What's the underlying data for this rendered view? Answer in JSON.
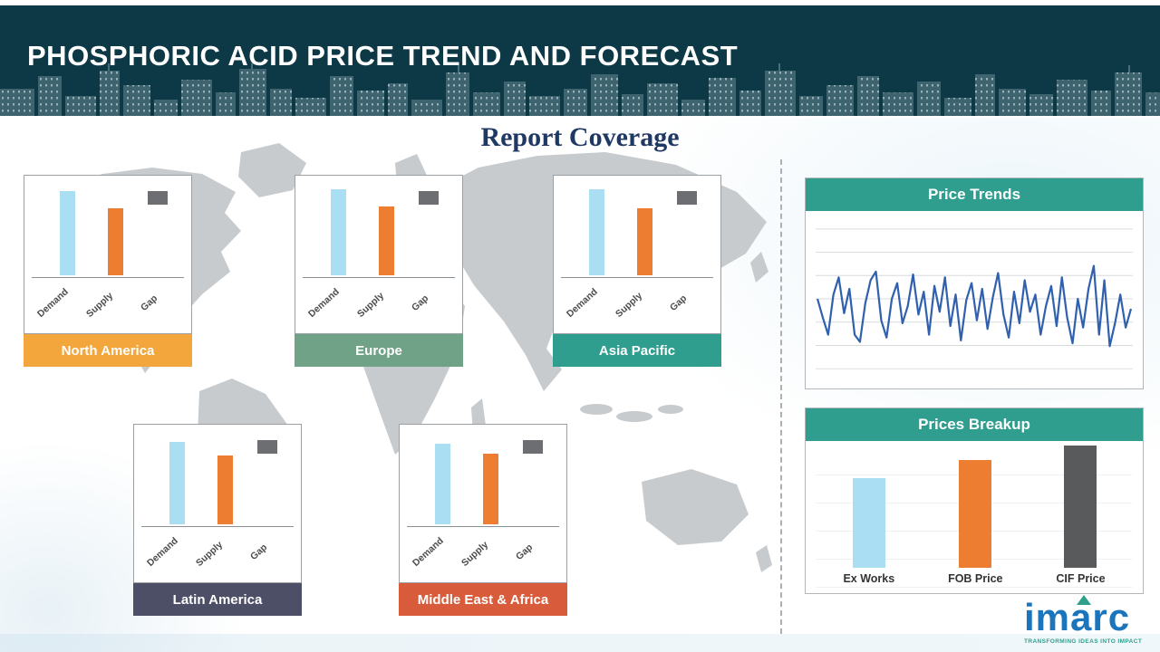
{
  "header": {
    "title": "PHOSPHORIC ACID PRICE TREND AND FORECAST"
  },
  "main": {
    "section_title": "Report Coverage"
  },
  "logo": {
    "text": "imarc",
    "tagline": "TRANSFORMING IDEAS INTO IMPACT"
  },
  "colors": {
    "header_bg": "#0d3845",
    "section_title_navy": "#1f3864",
    "teal_header": "#2f9e8e",
    "demand_blue": "#aadef2",
    "supply_orange": "#ed7d31",
    "gap_gray": "#6d6e71",
    "trend_line_blue": "#3060ae"
  },
  "chart_data": [
    {
      "id": "north-america-demand-supply-gap",
      "type": "bar",
      "title": "North America",
      "band_color": "#f2a63b",
      "categories": [
        "Demand",
        "Supply",
        "Gap"
      ],
      "values": [
        98,
        78,
        16
      ],
      "colors": [
        "#aadef2",
        "#ed7d31",
        "#6d6e71"
      ]
    },
    {
      "id": "europe-demand-supply-gap",
      "type": "bar",
      "title": "Europe",
      "band_color": "#6fa287",
      "categories": [
        "Demand",
        "Supply",
        "Gap"
      ],
      "values": [
        100,
        80,
        16
      ],
      "colors": [
        "#aadef2",
        "#ed7d31",
        "#6d6e71"
      ]
    },
    {
      "id": "asia-pacific-demand-supply-gap",
      "type": "bar",
      "title": "Asia Pacific",
      "band_color": "#2f9e8e",
      "categories": [
        "Demand",
        "Supply",
        "Gap"
      ],
      "values": [
        100,
        78,
        16
      ],
      "colors": [
        "#aadef2",
        "#ed7d31",
        "#6d6e71"
      ]
    },
    {
      "id": "latin-america-demand-supply-gap",
      "type": "bar",
      "title": "Latin America",
      "band_color": "#4c4f66",
      "categories": [
        "Demand",
        "Supply",
        "Gap"
      ],
      "values": [
        96,
        80,
        16
      ],
      "colors": [
        "#aadef2",
        "#ed7d31",
        "#6d6e71"
      ]
    },
    {
      "id": "middle-east-africa-demand-supply-gap",
      "type": "bar",
      "title": "Middle East & Africa",
      "band_color": "#d85c3b",
      "categories": [
        "Demand",
        "Supply",
        "Gap"
      ],
      "values": [
        94,
        82,
        16
      ],
      "colors": [
        "#aadef2",
        "#ed7d31",
        "#6d6e71"
      ]
    },
    {
      "id": "price-trends",
      "type": "line",
      "title": "Price Trends",
      "line_color": "#3060ae",
      "grid": true,
      "legend": "none",
      "ylim": [
        0,
        100
      ],
      "values": [
        55,
        42,
        30,
        58,
        70,
        45,
        62,
        30,
        25,
        52,
        68,
        74,
        40,
        28,
        55,
        66,
        38,
        50,
        72,
        44,
        60,
        30,
        64,
        46,
        70,
        36,
        58,
        26,
        54,
        66,
        40,
        62,
        34,
        56,
        73,
        44,
        28,
        60,
        38,
        68,
        46,
        58,
        30,
        50,
        64,
        36,
        70,
        42,
        24,
        55,
        35,
        62,
        78,
        30,
        68,
        22,
        38,
        58,
        35,
        48
      ]
    },
    {
      "id": "prices-breakup",
      "type": "bar",
      "title": "Prices Breakup",
      "categories": [
        "Ex Works",
        "FOB Price",
        "CIF Price"
      ],
      "values": [
        70,
        84,
        95
      ],
      "colors": [
        "#aadef2",
        "#ed7d31",
        "#595a5c"
      ]
    }
  ]
}
